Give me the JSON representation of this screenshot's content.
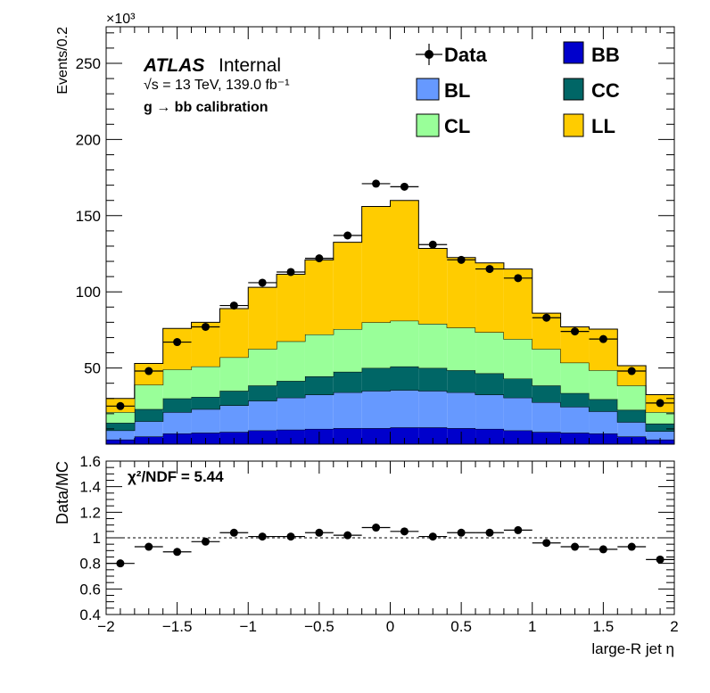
{
  "colors": {
    "BB": "#0000cc",
    "BL": "#6699ff",
    "CC": "#006666",
    "CL": "#99ff99",
    "LL": "#ffcc00",
    "data": "#000000"
  },
  "labels": {
    "exponent": "×10³",
    "ylabel_top": "Events/0.2",
    "ylabel_bottom": "Data/MC",
    "xlabel": "large-R jet η",
    "atlas": "ATLAS",
    "internal": "Internal",
    "energy_lumi": "√s = 13 TeV, 139.0 fb⁻¹",
    "calibration": "g → bb calibration",
    "chi2": "χ²/NDF = 5.44"
  },
  "legend": [
    {
      "key": "Data",
      "label": "Data",
      "kind": "marker"
    },
    {
      "key": "BB",
      "label": "BB",
      "kind": "box"
    },
    {
      "key": "BL",
      "label": "BL",
      "kind": "box"
    },
    {
      "key": "CC",
      "label": "CC",
      "kind": "box"
    },
    {
      "key": "CL",
      "label": "CL",
      "kind": "box"
    },
    {
      "key": "LL",
      "label": "LL",
      "kind": "box"
    }
  ],
  "chart_data": [
    {
      "type": "bar",
      "stacked": true,
      "x_bin_edges": [
        -2.0,
        -1.8,
        -1.6,
        -1.4,
        -1.2,
        -1.0,
        -0.8,
        -0.6,
        -0.4,
        -0.2,
        0.0,
        0.2,
        0.4,
        0.6,
        0.8,
        1.0,
        1.2,
        1.4,
        1.6,
        1.8,
        2.0
      ],
      "xlim": [
        -2,
        2
      ],
      "ylim": [
        0,
        274
      ],
      "y_scale_factor": "×10³",
      "ylabel": "Events/0.2",
      "y_ticks": [
        50,
        100,
        150,
        200,
        250
      ],
      "series": [
        {
          "name": "BB",
          "values": [
            3,
            5,
            7,
            7.5,
            8,
            9,
            9.5,
            10,
            10.5,
            10.5,
            11,
            11,
            10.5,
            10,
            9,
            8,
            7.5,
            7,
            5,
            3
          ]
        },
        {
          "name": "BL",
          "values": [
            6,
            10,
            14,
            15.5,
            17.5,
            19.5,
            21,
            22.5,
            23.5,
            24.5,
            24.5,
            24,
            23.5,
            22.5,
            21.5,
            19.5,
            17,
            14.5,
            9.5,
            5.5
          ]
        },
        {
          "name": "CC",
          "values": [
            5,
            8,
            9,
            8,
            9.5,
            10,
            11,
            12,
            13.5,
            15,
            15.5,
            15,
            14.5,
            14,
            12.5,
            11,
            9,
            8,
            8,
            5
          ]
        },
        {
          "name": "CL",
          "values": [
            7,
            16,
            19,
            20,
            22,
            24,
            26,
            27.5,
            28,
            30,
            30,
            29,
            28,
            27,
            26,
            24,
            20,
            19,
            16,
            7.5
          ]
        },
        {
          "name": "LL",
          "values": [
            9,
            14,
            27,
            29,
            32,
            40.5,
            44,
            49,
            57,
            76,
            79,
            49.5,
            46,
            45.5,
            46,
            23.5,
            23.5,
            27,
            13,
            11.5
          ]
        }
      ],
      "data_points": {
        "name": "Data",
        "x": [
          -1.9,
          -1.7,
          -1.5,
          -1.3,
          -1.1,
          -0.9,
          -0.7,
          -0.5,
          -0.3,
          -0.1,
          0.1,
          0.3,
          0.5,
          0.7,
          0.9,
          1.1,
          1.3,
          1.5,
          1.7,
          1.9
        ],
        "y": [
          25,
          48,
          67,
          77,
          91,
          106,
          113,
          122,
          137,
          171,
          169,
          131,
          121,
          115,
          109,
          83,
          74,
          69,
          48,
          27
        ]
      }
    },
    {
      "type": "scatter",
      "ylabel": "Data/MC",
      "xlabel": "large-R jet η",
      "xlim": [
        -2,
        2
      ],
      "ylim": [
        0.4,
        1.6
      ],
      "x_ticks": [
        -2,
        -1.5,
        -1,
        -0.5,
        0,
        0.5,
        1,
        1.5,
        2
      ],
      "x_tick_labels": [
        "−2",
        "−1.5",
        "−1",
        "−0.5",
        "0",
        "0.5",
        "1",
        "1.5",
        "2"
      ],
      "y_ticks": [
        0.4,
        0.6,
        0.8,
        1,
        1.2,
        1.4,
        1.6
      ],
      "y_tick_labels": [
        "0.4",
        "0.6",
        "0.8",
        "1",
        "1.2",
        "1.4",
        "1.6"
      ],
      "reference_line": 1.0,
      "x": [
        -1.9,
        -1.7,
        -1.5,
        -1.3,
        -1.1,
        -0.9,
        -0.7,
        -0.5,
        -0.3,
        -0.1,
        0.1,
        0.3,
        0.5,
        0.7,
        0.9,
        1.1,
        1.3,
        1.5,
        1.7,
        1.9
      ],
      "y": [
        0.8,
        0.93,
        0.89,
        0.97,
        1.04,
        1.01,
        1.01,
        1.04,
        1.02,
        1.08,
        1.05,
        1.01,
        1.04,
        1.04,
        1.06,
        0.96,
        0.93,
        0.91,
        0.93,
        0.83
      ]
    }
  ]
}
